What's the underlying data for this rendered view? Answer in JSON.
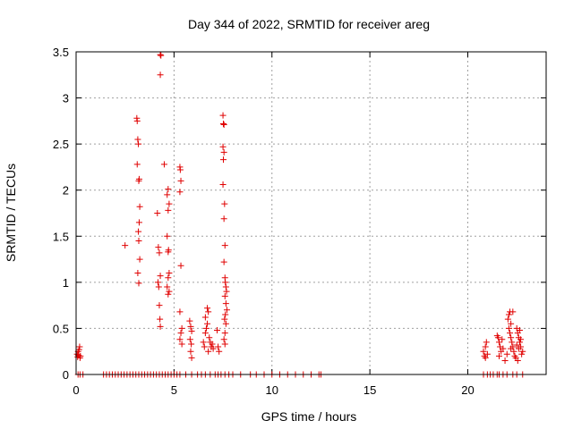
{
  "chart_data": {
    "type": "scatter",
    "title": "Day 344 of 2022, SRMTID for receiver areg",
    "xlabel": "GPS time / hours",
    "ylabel": "SRMTID / TECUs",
    "xlim": [
      0,
      24
    ],
    "ylim": [
      0,
      3.5
    ],
    "xticks": [
      0,
      5,
      10,
      15,
      20
    ],
    "xtick_labels": [
      "0",
      "5",
      "10",
      "15",
      "20"
    ],
    "yticks": [
      0,
      0.5,
      1,
      1.5,
      2,
      2.5,
      3,
      3.5
    ],
    "ytick_labels": [
      "0",
      "0.5",
      "1",
      "1.5",
      "2",
      "2.5",
      "3",
      "3.5"
    ],
    "grid": true,
    "marker": "+",
    "color": "#e00000",
    "series": [
      {
        "name": "SRMTID",
        "points": [
          [
            0.05,
            0.22
          ],
          [
            0.08,
            0.19
          ],
          [
            0.1,
            0.25
          ],
          [
            0.12,
            0.21
          ],
          [
            0.15,
            0.27
          ],
          [
            0.18,
            0.3
          ],
          [
            0.2,
            0.18
          ],
          [
            0.22,
            0.2
          ],
          [
            2.5,
            1.4
          ],
          [
            3.1,
            2.78
          ],
          [
            3.12,
            2.75
          ],
          [
            3.15,
            2.55
          ],
          [
            3.18,
            2.5
          ],
          [
            3.12,
            2.28
          ],
          [
            3.2,
            2.1
          ],
          [
            3.22,
            2.12
          ],
          [
            3.25,
            1.82
          ],
          [
            3.22,
            1.65
          ],
          [
            3.18,
            1.55
          ],
          [
            3.2,
            1.45
          ],
          [
            3.25,
            1.25
          ],
          [
            3.15,
            1.1
          ],
          [
            3.2,
            0.99
          ],
          [
            4.15,
            1.75
          ],
          [
            4.2,
            1.38
          ],
          [
            4.25,
            1.32
          ],
          [
            4.3,
            1.07
          ],
          [
            4.18,
            1.0
          ],
          [
            4.22,
            0.95
          ],
          [
            4.25,
            0.75
          ],
          [
            4.28,
            0.6
          ],
          [
            4.3,
            0.52
          ],
          [
            4.3,
            3.47
          ],
          [
            4.33,
            3.46
          ],
          [
            4.3,
            3.25
          ],
          [
            4.5,
            2.28
          ],
          [
            4.7,
            2.01
          ],
          [
            4.65,
            1.95
          ],
          [
            4.75,
            1.85
          ],
          [
            4.7,
            1.78
          ],
          [
            4.65,
            1.5
          ],
          [
            4.72,
            1.35
          ],
          [
            4.7,
            1.33
          ],
          [
            4.75,
            1.1
          ],
          [
            4.7,
            1.05
          ],
          [
            4.65,
            0.95
          ],
          [
            4.75,
            0.9
          ],
          [
            4.7,
            0.87
          ],
          [
            5.3,
            2.25
          ],
          [
            5.32,
            2.22
          ],
          [
            5.35,
            2.1
          ],
          [
            5.3,
            1.98
          ],
          [
            5.35,
            1.18
          ],
          [
            5.3,
            0.68
          ],
          [
            5.4,
            0.5
          ],
          [
            5.35,
            0.45
          ],
          [
            5.3,
            0.38
          ],
          [
            5.4,
            0.33
          ],
          [
            5.8,
            0.58
          ],
          [
            5.85,
            0.52
          ],
          [
            5.9,
            0.47
          ],
          [
            5.82,
            0.38
          ],
          [
            5.88,
            0.33
          ],
          [
            5.85,
            0.25
          ],
          [
            5.9,
            0.18
          ],
          [
            6.5,
            0.35
          ],
          [
            6.55,
            0.3
          ],
          [
            6.6,
            0.45
          ],
          [
            6.65,
            0.5
          ],
          [
            6.7,
            0.72
          ],
          [
            6.75,
            0.68
          ],
          [
            6.6,
            0.62
          ],
          [
            6.7,
            0.55
          ],
          [
            6.8,
            0.4
          ],
          [
            6.85,
            0.35
          ],
          [
            6.9,
            0.3
          ],
          [
            6.75,
            0.25
          ],
          [
            6.95,
            0.33
          ],
          [
            7.0,
            0.28
          ],
          [
            7.2,
            0.48
          ],
          [
            7.25,
            0.3
          ],
          [
            7.3,
            0.25
          ],
          [
            7.5,
            2.81
          ],
          [
            7.52,
            2.72
          ],
          [
            7.55,
            2.71
          ],
          [
            7.5,
            2.47
          ],
          [
            7.55,
            2.41
          ],
          [
            7.52,
            2.33
          ],
          [
            7.5,
            2.06
          ],
          [
            7.58,
            1.85
          ],
          [
            7.55,
            1.69
          ],
          [
            7.6,
            1.4
          ],
          [
            7.55,
            1.22
          ],
          [
            7.6,
            1.05
          ],
          [
            7.62,
            1.0
          ],
          [
            7.65,
            0.95
          ],
          [
            7.68,
            0.9
          ],
          [
            7.6,
            0.85
          ],
          [
            7.65,
            0.77
          ],
          [
            7.7,
            0.7
          ],
          [
            7.62,
            0.65
          ],
          [
            7.58,
            0.6
          ],
          [
            7.65,
            0.55
          ],
          [
            7.6,
            0.45
          ],
          [
            7.55,
            0.38
          ],
          [
            7.6,
            0.33
          ],
          [
            20.8,
            0.25
          ],
          [
            20.9,
            0.3
          ],
          [
            20.85,
            0.2
          ],
          [
            20.95,
            0.35
          ],
          [
            21.0,
            0.22
          ],
          [
            20.9,
            0.18
          ],
          [
            21.5,
            0.42
          ],
          [
            21.55,
            0.4
          ],
          [
            21.6,
            0.35
          ],
          [
            21.65,
            0.3
          ],
          [
            21.7,
            0.25
          ],
          [
            21.6,
            0.2
          ],
          [
            21.75,
            0.38
          ],
          [
            21.8,
            0.28
          ],
          [
            21.9,
            0.15
          ],
          [
            22.0,
            0.22
          ],
          [
            22.05,
            0.6
          ],
          [
            22.1,
            0.65
          ],
          [
            22.15,
            0.68
          ],
          [
            22.2,
            0.55
          ],
          [
            22.1,
            0.5
          ],
          [
            22.15,
            0.45
          ],
          [
            22.2,
            0.4
          ],
          [
            22.25,
            0.35
          ],
          [
            22.3,
            0.3
          ],
          [
            22.2,
            0.28
          ],
          [
            22.35,
            0.25
          ],
          [
            22.4,
            0.2
          ],
          [
            22.3,
            0.68
          ],
          [
            22.5,
            0.5
          ],
          [
            22.55,
            0.45
          ],
          [
            22.6,
            0.4
          ],
          [
            22.65,
            0.35
          ],
          [
            22.7,
            0.3
          ],
          [
            22.6,
            0.28
          ],
          [
            22.75,
            0.22
          ],
          [
            22.55,
            0.15
          ],
          [
            22.8,
            0.25
          ],
          [
            22.7,
            0.38
          ],
          [
            22.65,
            0.48
          ],
          [
            22.5,
            0.32
          ],
          [
            22.45,
            0.18
          ]
        ],
        "zero_points": [
          0.1,
          0.2,
          0.35,
          1.4,
          1.55,
          1.7,
          1.85,
          2.0,
          2.15,
          2.3,
          2.45,
          2.6,
          2.75,
          2.9,
          3.05,
          3.2,
          3.35,
          3.5,
          3.65,
          3.8,
          3.95,
          4.1,
          4.25,
          4.4,
          4.55,
          4.7,
          4.85,
          5.0,
          5.15,
          5.3,
          5.6,
          5.9,
          6.2,
          6.4,
          6.6,
          6.85,
          7.1,
          7.25,
          7.4,
          7.6,
          7.8,
          8.0,
          8.4,
          8.9,
          9.2,
          9.6,
          10.0,
          10.4,
          10.8,
          11.2,
          11.6,
          12.0,
          12.4,
          12.5,
          20.8,
          21.0,
          21.15,
          21.3,
          21.5,
          21.6,
          21.8,
          22.0,
          22.3,
          22.5,
          22.8
        ]
      }
    ]
  }
}
